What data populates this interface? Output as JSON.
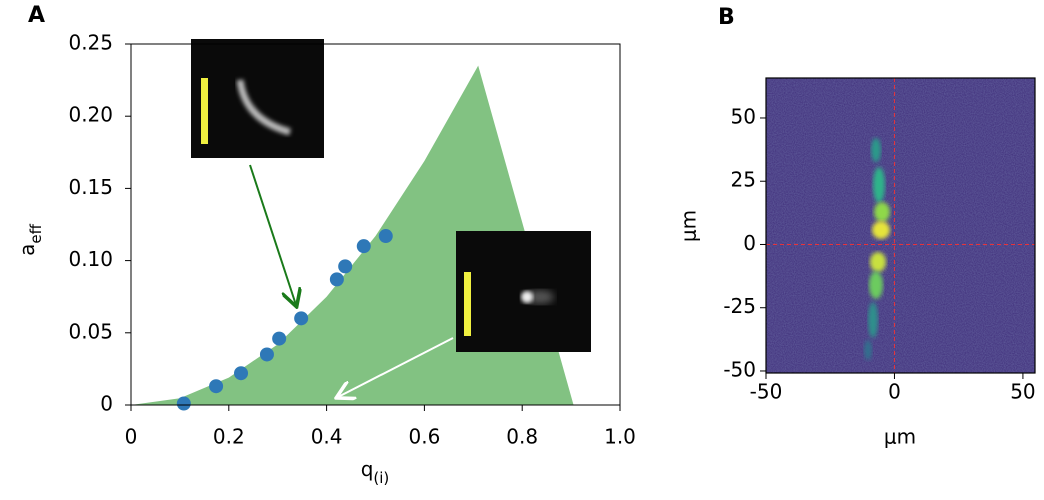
{
  "chart_data": [
    {
      "type": "scatter",
      "panel": "A",
      "xlabel": "q",
      "xlabel_sub": "(i)",
      "ylabel": "a",
      "ylabel_sub": "eff",
      "x": [
        0.108,
        0.174,
        0.225,
        0.278,
        0.303,
        0.348,
        0.421,
        0.438,
        0.476,
        0.521
      ],
      "y": [
        0.001,
        0.013,
        0.022,
        0.035,
        0.046,
        0.06,
        0.087,
        0.096,
        0.11,
        0.117
      ],
      "color": "#2e78b7",
      "region": {
        "x": [
          0,
          0.1,
          0.2,
          0.3,
          0.4,
          0.5,
          0.6,
          0.71,
          0.905
        ],
        "y": [
          0,
          0.0047,
          0.019,
          0.042,
          0.075,
          0.117,
          0.169,
          0.235,
          0
        ],
        "color": "#82c282"
      },
      "xlim": [
        0,
        1
      ],
      "ylim": [
        0,
        0.25
      ],
      "xticks": [
        0,
        0.2,
        0.4,
        0.6,
        0.8,
        {
          "value": 1,
          "label": "1.0"
        }
      ],
      "yticks": [
        0,
        0.05,
        {
          "value": 0.1,
          "label": "0.10"
        },
        0.15,
        {
          "value": 0.2,
          "label": "0.20"
        },
        0.25
      ]
    },
    {
      "type": "image",
      "panel": "B",
      "xlabel": "μm",
      "ylabel": "μm",
      "xlim": [
        -50,
        54.7
      ],
      "ylim": [
        -50.8,
        65.8
      ],
      "xticks": [
        -50,
        0,
        50
      ],
      "yticks": [
        -50,
        -25,
        0,
        25,
        50
      ],
      "crosshair": {
        "x": 0,
        "y": 0,
        "color": "#e8333a"
      }
    }
  ]
}
